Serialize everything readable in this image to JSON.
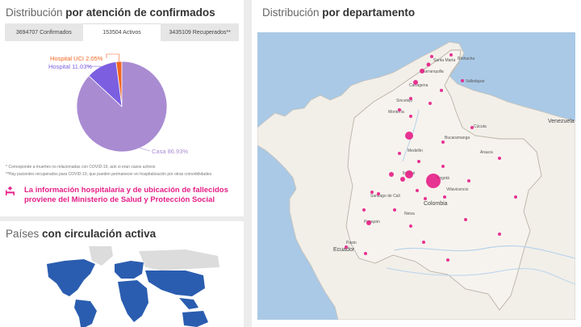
{
  "confirmados": {
    "title_light": "Distribución",
    "title_bold": "por atención de confirmados",
    "tabs": [
      {
        "label": "3694707 Confirmados"
      },
      {
        "label": "153504 Activos"
      },
      {
        "label": "3435109 Recuperados**"
      }
    ],
    "notes": [
      "* Corresponde a muertes no relacionadas con COVID-19, aún si eran casos activos",
      "**Hay pacientes recuperados para COVID-19, que pueden permanecer en hospitalización por otras comorbilidades"
    ],
    "message_line1": "La información hospitalaria y de ubicación de fallecidos",
    "message_line2": "proviene del Ministerio de Salud y Protección Social",
    "icon": "hospital-bed-icon",
    "colors": {
      "accent": "#e51e86",
      "uci": "#f26522",
      "hospital": "#7b5fe0",
      "casa": "#a98bd2"
    }
  },
  "chart_data": {
    "type": "pie",
    "categories": [
      "Hospital UCI",
      "Hospital",
      "Casa"
    ],
    "values": [
      2.05,
      11.03,
      86.93
    ],
    "labels": [
      "Hospital UCI 2.05%",
      "Hospital 11.03%",
      "Casa 86.93%"
    ],
    "colors": [
      "#f26522",
      "#7b5fe0",
      "#a98bd2"
    ]
  },
  "departamento": {
    "title_light": "Distribución",
    "title_bold": "por departamento",
    "country_labels": [
      "Venezuela",
      "Ecuador"
    ],
    "capital_label": "Colombia",
    "city_labels": [
      "Cartagena",
      "Barranquilla",
      "Santa Marta",
      "Sincelejo",
      "Montería",
      "Valledupar",
      "Riohacha",
      "Medellín",
      "Bucaramanga",
      "Cúcuta",
      "Bogotá",
      "Ibagué",
      "Santiago de Cali",
      "Neiva",
      "Popayán",
      "Pasto",
      "Villavicencio",
      "Arauca"
    ],
    "marker_color": "#e51e86"
  },
  "paises": {
    "title_light": "Países",
    "title_bold": "con circulación activa",
    "colors": {
      "active": "#2a5db0",
      "inactive": "#dcdcdc"
    }
  }
}
